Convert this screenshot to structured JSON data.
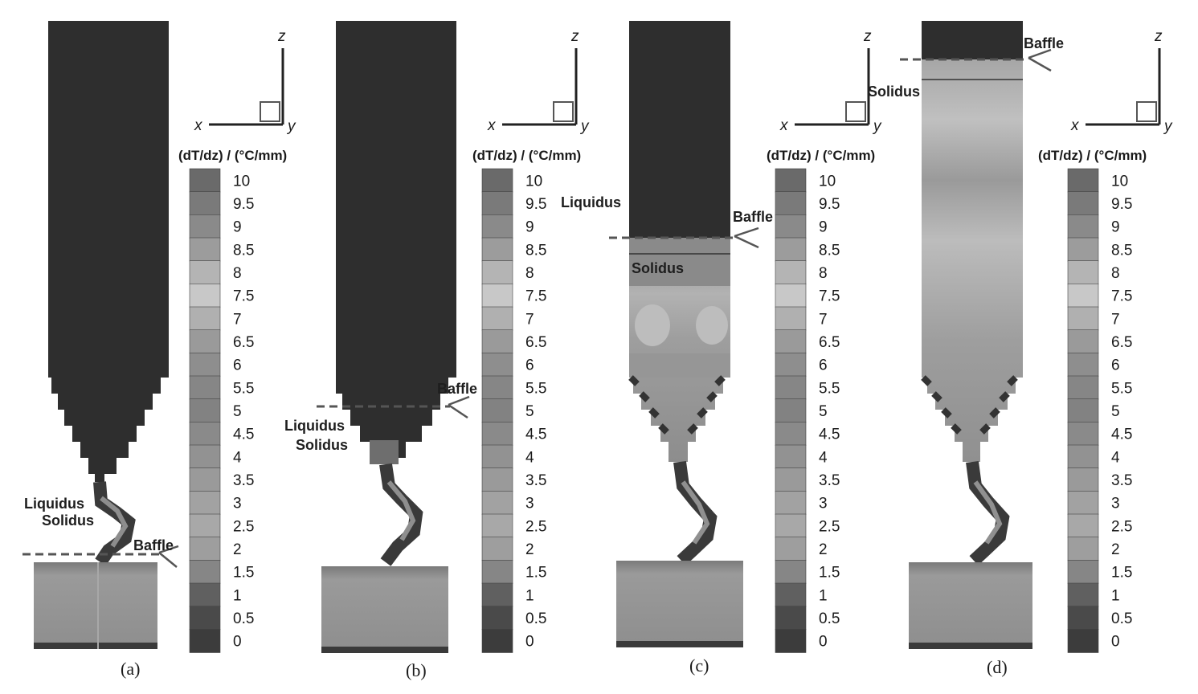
{
  "colorbar": {
    "title": "(dT/dz) / (°C/mm)",
    "ticks": [
      "10",
      "9.5",
      "9",
      "8.5",
      "8",
      "7.5",
      "7",
      "6.5",
      "6",
      "5.5",
      "5",
      "4.5",
      "4",
      "3.5",
      "3",
      "2.5",
      "2",
      "1.5",
      "1",
      "0.5",
      "0"
    ],
    "colors": [
      "#6a6a6a",
      "#7a7a7a",
      "#8a8a8a",
      "#9c9c9c",
      "#b4b4b4",
      "#c8c8c8",
      "#b0b0b0",
      "#9a9a9a",
      "#8e8e8e",
      "#868686",
      "#828282",
      "#8a8a8a",
      "#929292",
      "#9a9a9a",
      "#a2a2a2",
      "#a8a8a8",
      "#9e9e9e",
      "#868686",
      "#606060",
      "#4a4a4a",
      "#3c3c3c"
    ]
  },
  "axes": {
    "z": "z",
    "x": "x",
    "y": "y"
  },
  "labels": {
    "liquidus": "Liquidus",
    "solidus": "Solidus",
    "baffle": "Baffle"
  },
  "panels": [
    {
      "label": "(a)"
    },
    {
      "label": "(b)"
    },
    {
      "label": "(c)"
    },
    {
      "label": "(d)"
    }
  ],
  "colors": {
    "dark_region": "#2e2e2e",
    "mid_region": "#8c8c8c",
    "light_region": "#b5b5b5",
    "dashed_line": "#555555"
  }
}
